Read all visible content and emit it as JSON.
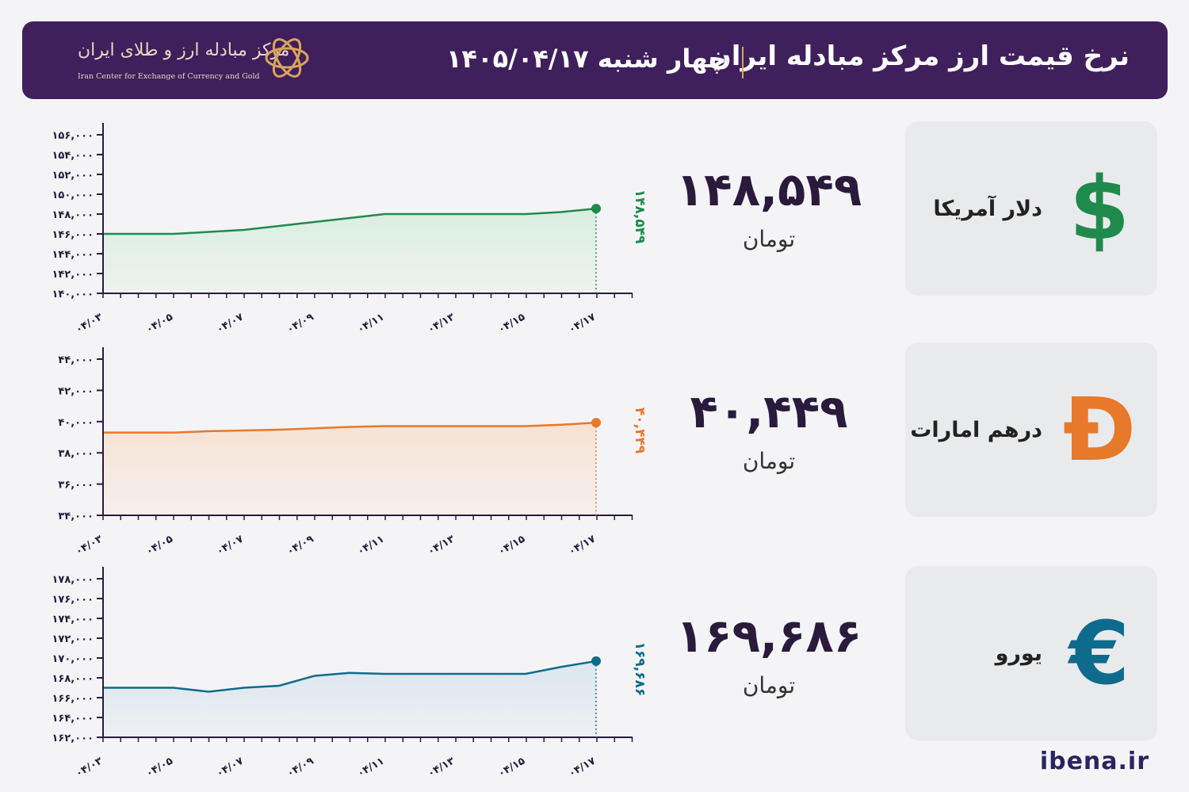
{
  "header": {
    "title": "نرخ قیمت ارز مرکز مبادله ایران",
    "date": "چهار شنبه  ۱۴۰۵/۰۴/۱۷",
    "logo_fa": "مرکز مبادله ارز و طلای ایران",
    "logo_en": "Iran Center for Exchange of Currency and Gold"
  },
  "footer": {
    "site": "ibena.ir"
  },
  "currencies": [
    {
      "name": "دلار آمریکا",
      "price": "۱۴۸,۵۴۹",
      "unit": "تومان",
      "icon": "dollar-icon",
      "glyph": "$",
      "color": "#1f8a4c",
      "fill": "#d9eedf"
    },
    {
      "name": "درهم امارات",
      "price": "۴۰,۴۴۹",
      "unit": "تومان",
      "icon": "dirham-icon",
      "glyph": "Đ",
      "color": "#e8782a",
      "fill": "#f8e2d2"
    },
    {
      "name": "یورو",
      "price": "۱۶۹,۶۸۶",
      "unit": "تومان",
      "icon": "euro-icon",
      "glyph": "€",
      "color": "#0f6b8e",
      "fill": "#dae6ee"
    }
  ],
  "chart_data": [
    {
      "type": "area",
      "x": [
        "04/03",
        "04/04",
        "04/05",
        "04/06",
        "04/07",
        "04/08",
        "04/09",
        "04/10",
        "04/11",
        "04/12",
        "04/13",
        "04/14",
        "04/15",
        "04/16",
        "04/17"
      ],
      "xticks": [
        "۰۴/۰۳",
        "۰۴/۰۵",
        "۰۴/۰۷",
        "۰۴/۰۹",
        "۰۴/۱۱",
        "۰۴/۱۳",
        "۰۴/۱۵",
        "۰۴/۱۷"
      ],
      "yticks": [
        "۱۴۰,۰۰۰",
        "۱۴۲,۰۰۰",
        "۱۴۴,۰۰۰",
        "۱۴۶,۰۰۰",
        "۱۴۸,۰۰۰",
        "۱۵۰,۰۰۰",
        "۱۵۲,۰۰۰",
        "۱۵۴,۰۰۰",
        "۱۵۶,۰۰۰"
      ],
      "values": [
        146000,
        146000,
        146000,
        146200,
        146400,
        146800,
        147200,
        147600,
        148000,
        148000,
        148000,
        148000,
        148000,
        148200,
        148549
      ],
      "ylim": [
        140000,
        156000
      ],
      "last_label": "۱۴۸,۵۴۹"
    },
    {
      "type": "area",
      "x": [
        "04/03",
        "04/04",
        "04/05",
        "04/06",
        "04/07",
        "04/08",
        "04/09",
        "04/10",
        "04/11",
        "04/12",
        "04/13",
        "04/14",
        "04/15",
        "04/16",
        "04/17"
      ],
      "xticks": [
        "۰۴/۰۳",
        "۰۴/۰۵",
        "۰۴/۰۷",
        "۰۴/۰۹",
        "۰۴/۱۱",
        "۰۴/۱۳",
        "۰۴/۱۵",
        "۰۴/۱۷"
      ],
      "yticks": [
        "۳۴,۰۰۰",
        "۳۶,۰۰۰",
        "۳۸,۰۰۰",
        "۴۰,۰۰۰",
        "۴۲,۰۰۰",
        "۴۴,۰۰۰"
      ],
      "values": [
        39750,
        39750,
        39750,
        39850,
        39900,
        39950,
        40050,
        40150,
        40200,
        40200,
        40200,
        40200,
        40200,
        40300,
        40449
      ],
      "ylim": [
        33950,
        44900
      ],
      "last_label": "۴۰,۴۴۹"
    },
    {
      "type": "area",
      "x": [
        "04/03",
        "04/04",
        "04/05",
        "04/06",
        "04/07",
        "04/08",
        "04/09",
        "04/10",
        "04/11",
        "04/12",
        "04/13",
        "04/14",
        "04/15",
        "04/16",
        "04/17"
      ],
      "xticks": [
        "۰۴/۰۳",
        "۰۴/۰۵",
        "۰۴/۰۷",
        "۰۴/۰۹",
        "۰۴/۱۱",
        "۰۴/۱۳",
        "۰۴/۱۵",
        "۰۴/۱۷"
      ],
      "yticks": [
        "۱۶۲,۰۰۰",
        "۱۶۴,۰۰۰",
        "۱۶۶,۰۰۰",
        "۱۶۸,۰۰۰",
        "۱۷۰,۰۰۰",
        "۱۷۲,۰۰۰",
        "۱۷۴,۰۰۰",
        "۱۷۶,۰۰۰",
        "۱۷۸,۰۰۰"
      ],
      "values": [
        167000,
        167000,
        167000,
        166600,
        167000,
        167200,
        168200,
        168500,
        168400,
        168400,
        168400,
        168400,
        168400,
        169100,
        169686
      ],
      "ylim": [
        162000,
        178000
      ],
      "last_label": "۱۶۹,۶۸۶"
    }
  ]
}
